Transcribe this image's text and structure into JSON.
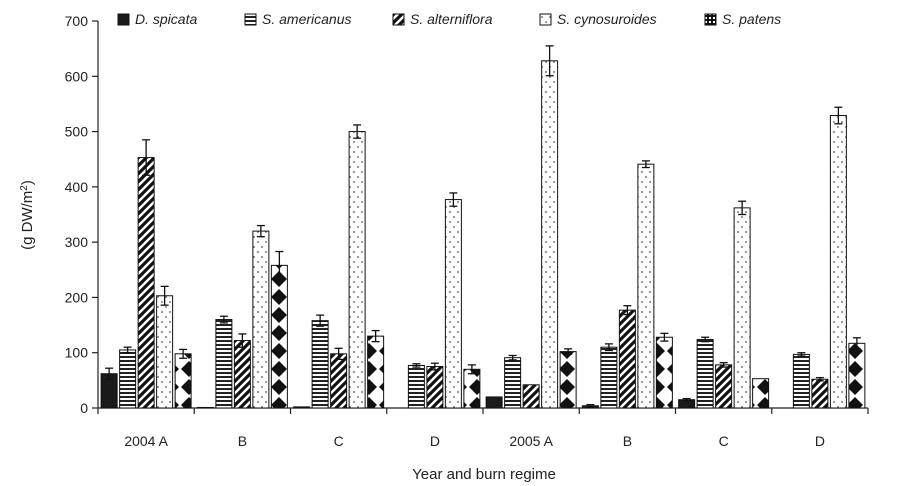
{
  "chart_data": {
    "type": "bar",
    "title": "",
    "xlabel": "Year and burn regime",
    "ylabel": "(g DW/m²)",
    "ylim": [
      0,
      700
    ],
    "yticks": [
      0,
      100,
      200,
      300,
      400,
      500,
      600,
      700
    ],
    "categories": [
      "2004 A",
      "B",
      "C",
      "D",
      "2005 A",
      "B",
      "C",
      "D"
    ],
    "legend_position": "top",
    "grid": false,
    "series": [
      {
        "name": "D. spicata",
        "pattern": "solid",
        "color": "#1a1a1a",
        "values": [
          62,
          1,
          2,
          0,
          20,
          4,
          15,
          0
        ],
        "errors": [
          10,
          0,
          0,
          0,
          0,
          2,
          2,
          0
        ]
      },
      {
        "name": "S. americanus",
        "pattern": "hlines",
        "color": "#222222",
        "values": [
          105,
          160,
          158,
          77,
          91,
          110,
          124,
          97
        ],
        "errors": [
          5,
          6,
          10,
          3,
          4,
          6,
          4,
          3
        ]
      },
      {
        "name": "S. alterniflora",
        "pattern": "diagonal",
        "color": "#222222",
        "values": [
          453,
          122,
          98,
          75,
          42,
          177,
          78,
          52
        ],
        "errors": [
          32,
          12,
          10,
          6,
          0,
          8,
          4,
          3
        ]
      },
      {
        "name": "S. cynosuroides",
        "pattern": "dots",
        "color": "#666666",
        "values": [
          203,
          320,
          500,
          377,
          628,
          441,
          362,
          529
        ],
        "errors": [
          17,
          10,
          12,
          12,
          27,
          6,
          12,
          15
        ]
      },
      {
        "name": "S. patens",
        "pattern": "diamonds",
        "color": "#111111",
        "values": [
          98,
          258,
          130,
          70,
          102,
          128,
          53,
          117
        ],
        "errors": [
          8,
          25,
          10,
          8,
          5,
          7,
          0,
          10
        ]
      }
    ]
  }
}
